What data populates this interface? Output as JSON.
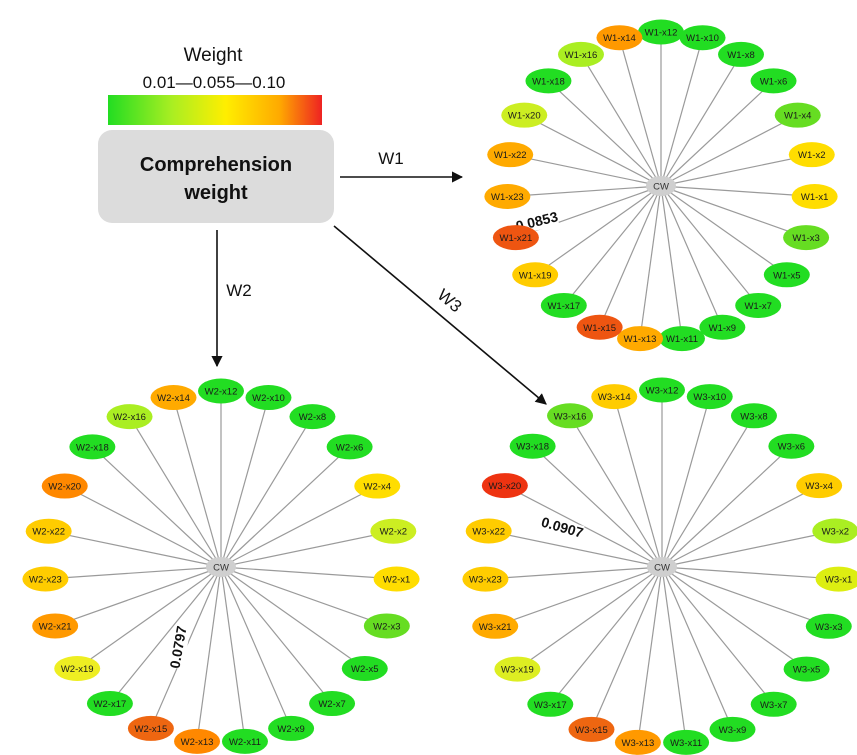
{
  "legend": {
    "title": "Weight",
    "range_text": "0.01—0.055—0.10",
    "colors": [
      "#22dd22",
      "#aaee22",
      "#ffee00",
      "#ffaa00",
      "#ee2222"
    ]
  },
  "center_box": {
    "line1": "Comprehension",
    "line2": "weight"
  },
  "arrows": {
    "w1": "W1",
    "w2": "W2",
    "w3": "W3"
  },
  "networks": [
    {
      "id": "W1",
      "hub_label": "CW",
      "highlight_label": "0.0853",
      "nodes": [
        {
          "label": "W1-x12",
          "color": "#22dd22"
        },
        {
          "label": "W1-x10",
          "color": "#22dd22"
        },
        {
          "label": "W1-x8",
          "color": "#22dd22"
        },
        {
          "label": "W1-x6",
          "color": "#22dd22"
        },
        {
          "label": "W1-x4",
          "color": "#66dd22"
        },
        {
          "label": "W1-x2",
          "color": "#ffdd00"
        },
        {
          "label": "W1-x1",
          "color": "#ffdd00"
        },
        {
          "label": "W1-x3",
          "color": "#66dd22"
        },
        {
          "label": "W1-x5",
          "color": "#22dd22"
        },
        {
          "label": "W1-x7",
          "color": "#22dd22"
        },
        {
          "label": "W1-x9",
          "color": "#22dd22"
        },
        {
          "label": "W1-x11",
          "color": "#22dd22"
        },
        {
          "label": "W1-x13",
          "color": "#ffaa00"
        },
        {
          "label": "W1-x15",
          "color": "#ee5511"
        },
        {
          "label": "W1-x17",
          "color": "#22dd22"
        },
        {
          "label": "W1-x19",
          "color": "#ffcc00"
        },
        {
          "label": "W1-x21",
          "color": "#ee5511"
        },
        {
          "label": "W1-x23",
          "color": "#ffaa00"
        },
        {
          "label": "W1-x22",
          "color": "#ffaa00"
        },
        {
          "label": "W1-x20",
          "color": "#ccee22"
        },
        {
          "label": "W1-x18",
          "color": "#22dd22"
        },
        {
          "label": "W1-x16",
          "color": "#aaee22"
        },
        {
          "label": "W1-x14",
          "color": "#ff9900"
        }
      ]
    },
    {
      "id": "W2",
      "hub_label": "CW",
      "highlight_label": "0.0797",
      "nodes": [
        {
          "label": "W2-x12",
          "color": "#22dd22"
        },
        {
          "label": "W2-x10",
          "color": "#22dd22"
        },
        {
          "label": "W2-x8",
          "color": "#22dd22"
        },
        {
          "label": "W2-x6",
          "color": "#22dd22"
        },
        {
          "label": "W2-x4",
          "color": "#ffdd00"
        },
        {
          "label": "W2-x2",
          "color": "#ccee22"
        },
        {
          "label": "W2-x1",
          "color": "#ffdd00"
        },
        {
          "label": "W2-x3",
          "color": "#66dd22"
        },
        {
          "label": "W2-x5",
          "color": "#22dd22"
        },
        {
          "label": "W2-x7",
          "color": "#22dd22"
        },
        {
          "label": "W2-x9",
          "color": "#22dd22"
        },
        {
          "label": "W2-x11",
          "color": "#22dd22"
        },
        {
          "label": "W2-x13",
          "color": "#ff8800"
        },
        {
          "label": "W2-x15",
          "color": "#ee6611"
        },
        {
          "label": "W2-x17",
          "color": "#22dd22"
        },
        {
          "label": "W2-x19",
          "color": "#eeee22"
        },
        {
          "label": "W2-x21",
          "color": "#ff9900"
        },
        {
          "label": "W2-x23",
          "color": "#ffcc00"
        },
        {
          "label": "W2-x22",
          "color": "#ffcc00"
        },
        {
          "label": "W2-x20",
          "color": "#ff8800"
        },
        {
          "label": "W2-x18",
          "color": "#22dd22"
        },
        {
          "label": "W2-x16",
          "color": "#aaee22"
        },
        {
          "label": "W2-x14",
          "color": "#ffaa00"
        }
      ]
    },
    {
      "id": "W3",
      "hub_label": "CW",
      "highlight_label": "0.0907",
      "nodes": [
        {
          "label": "W3-x12",
          "color": "#22dd22"
        },
        {
          "label": "W3-x10",
          "color": "#22dd22"
        },
        {
          "label": "W3-x8",
          "color": "#22dd22"
        },
        {
          "label": "W3-x6",
          "color": "#22dd22"
        },
        {
          "label": "W3-x4",
          "color": "#ffcc00"
        },
        {
          "label": "W3-x2",
          "color": "#aaee22"
        },
        {
          "label": "W3-x1",
          "color": "#ddee11"
        },
        {
          "label": "W3-x3",
          "color": "#22dd22"
        },
        {
          "label": "W3-x5",
          "color": "#22dd22"
        },
        {
          "label": "W3-x7",
          "color": "#22dd22"
        },
        {
          "label": "W3-x9",
          "color": "#22dd22"
        },
        {
          "label": "W3-x11",
          "color": "#22dd22"
        },
        {
          "label": "W3-x13",
          "color": "#ff9900"
        },
        {
          "label": "W3-x15",
          "color": "#ee6611"
        },
        {
          "label": "W3-x17",
          "color": "#22dd22"
        },
        {
          "label": "W3-x19",
          "color": "#ddee22"
        },
        {
          "label": "W3-x21",
          "color": "#ffaa00"
        },
        {
          "label": "W3-x23",
          "color": "#ffcc00"
        },
        {
          "label": "W3-x22",
          "color": "#ffcc00"
        },
        {
          "label": "W3-x20",
          "color": "#ee3311"
        },
        {
          "label": "W3-x18",
          "color": "#22dd22"
        },
        {
          "label": "W3-x16",
          "color": "#66dd22"
        },
        {
          "label": "W3-x14",
          "color": "#ffcc00"
        }
      ]
    }
  ]
}
